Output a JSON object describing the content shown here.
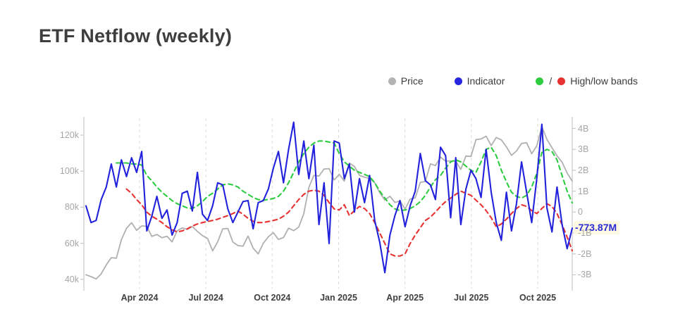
{
  "page": {
    "background": "#ffffff"
  },
  "title": "ETF Netflow (weekly)",
  "legend": {
    "items": [
      {
        "label": "Price",
        "color": "#b3b3b3"
      },
      {
        "label": "Indicator",
        "color": "#2626e0"
      },
      {
        "label": "High/low bands",
        "color": "#2ecc40",
        "color2": "#e63232",
        "separator": "/"
      }
    ]
  },
  "current_value": {
    "label": "-773.87M",
    "value_B": -0.77387,
    "color": "#2a2ad4",
    "highlight": "#fcf7de"
  },
  "chart_data": {
    "type": "line",
    "title": "ETF Netflow (weekly)",
    "x_tick_labels": [
      "Apr 2024",
      "Jul 2024",
      "Oct 2024",
      "Jan 2025",
      "Apr 2025",
      "Jul 2025",
      "Oct 2025"
    ],
    "x_range_note": "weekly points from mid-Jan 2024 to mid-Nov 2025",
    "grid": "vertical-dashed",
    "legend_position": "top-right",
    "left_axis": {
      "ticks": [
        "120k",
        "100k",
        "80k",
        "60k",
        "40k"
      ],
      "values_k": [
        120,
        100,
        80,
        60,
        40
      ],
      "range_k": [
        38,
        128
      ]
    },
    "right_axis": {
      "ticks": [
        "4B",
        "3B",
        "2B",
        "1B",
        "0",
        "-1B",
        "-2B",
        "-3B"
      ],
      "values_B": [
        4,
        3,
        2,
        1,
        0,
        -1,
        -2,
        -3
      ],
      "range_B": [
        -3.5,
        4.5
      ]
    },
    "series": [
      {
        "name": "Price",
        "axis": "left",
        "unit": "USD thousands",
        "color": "#b0b0b0",
        "style": "solid",
        "width": 1.8,
        "values": [
          42.5,
          41.5,
          40.2,
          43.0,
          48.0,
          52.0,
          51.7,
          62.0,
          68.3,
          71.4,
          67.2,
          69.6,
          69.4,
          63.8,
          64.9,
          63.1,
          63.9,
          60.8,
          66.9,
          68.5,
          67.7,
          69.3,
          66.6,
          64.2,
          62.7,
          55.8,
          60.8,
          68.0,
          68.2,
          60.7,
          58.7,
          58.4,
          64.0,
          57.3,
          54.1,
          60.0,
          63.6,
          65.9,
          62.1,
          63.2,
          68.4,
          67.0,
          69.0,
          76.5,
          91.0,
          97.7,
          97.3,
          101.2,
          101.4,
          95.1,
          98.3,
          94.5,
          104.5,
          102.6,
          97.7,
          96.6,
          96.1,
          93.6,
          88.0,
          84.0,
          86.1,
          82.6,
          83.5,
          79.0,
          84.5,
          85.2,
          93.8,
          94.3,
          104.1,
          103.1,
          107.8,
          105.6,
          105.7,
          105.5,
          101.0,
          108.4,
          108.2,
          117.5,
          117.9,
          119.4,
          114.2,
          118.7,
          117.4,
          113.5,
          108.8,
          111.2,
          115.4,
          115.8,
          109.7,
          114.1,
          124.7,
          117.6,
          113.0,
          108.5,
          105.0,
          99.0,
          94.5
        ]
      },
      {
        "name": "Indicator",
        "axis": "right",
        "unit": "USD billions per week",
        "color": "#2222dc",
        "style": "solid",
        "width": 2.1,
        "values": [
          0.3,
          -0.5,
          -0.4,
          0.6,
          1.2,
          2.3,
          1.2,
          2.5,
          1.7,
          2.6,
          1.9,
          2.9,
          -0.9,
          -0.2,
          0.75,
          -0.3,
          0.1,
          -1.1,
          -0.5,
          0.9,
          1.0,
          0.05,
          1.9,
          -0.1,
          -0.4,
          0.3,
          1.4,
          1.3,
          0.15,
          -0.5,
          0.0,
          0.5,
          0.55,
          -0.8,
          0.45,
          0.55,
          1.1,
          2.1,
          2.9,
          1.4,
          3.0,
          4.3,
          1.8,
          3.4,
          1.6,
          3.2,
          -0.6,
          1.4,
          -1.5,
          3.4,
          3.3,
          1.6,
          2.3,
          0.0,
          1.6,
          0.45,
          1.75,
          -0.4,
          -1.45,
          -2.9,
          -1.1,
          -0.17,
          0.55,
          -0.7,
          0.3,
          1.0,
          2.8,
          1.5,
          1.3,
          0.6,
          3.1,
          2.7,
          -0.27,
          2.6,
          -0.6,
          1.1,
          2.0,
          1.6,
          0.7,
          3.0,
          0.95,
          -0.5,
          -1.35,
          0.95,
          -0.9,
          0.4,
          2.4,
          0.95,
          -0.5,
          1.6,
          4.2,
          0.2,
          -0.95,
          1.2,
          -0.6,
          -1.75,
          -0.77
        ]
      },
      {
        "name": "High band",
        "axis": "right",
        "unit": "USD billions per week",
        "color": "#2ecc40",
        "style": "dashed",
        "width": 2.1,
        "values": [
          null,
          null,
          null,
          null,
          null,
          null,
          2.35,
          2.35,
          2.35,
          2.3,
          2.3,
          2.25,
          1.75,
          1.5,
          1.2,
          0.95,
          0.75,
          0.55,
          0.4,
          0.3,
          0.2,
          0.17,
          0.3,
          0.5,
          0.75,
          0.9,
          1.1,
          1.3,
          1.35,
          1.3,
          1.2,
          1.0,
          0.85,
          0.7,
          0.6,
          0.57,
          0.6,
          0.65,
          0.75,
          1.0,
          1.4,
          1.9,
          2.4,
          2.8,
          3.1,
          3.3,
          3.4,
          3.4,
          3.35,
          3.3,
          2.8,
          2.4,
          2.2,
          2.0,
          1.9,
          1.8,
          1.7,
          1.4,
          1.0,
          0.67,
          0.35,
          0.15,
          0.07,
          0.1,
          0.17,
          0.3,
          0.5,
          0.8,
          1.2,
          1.55,
          1.75,
          2.1,
          2.4,
          2.5,
          2.4,
          2.2,
          2.0,
          1.9,
          2.4,
          3.0,
          3.1,
          2.7,
          2.0,
          1.45,
          0.95,
          0.75,
          0.67,
          0.8,
          1.2,
          1.85,
          2.85,
          3.0,
          2.9,
          2.5,
          1.75,
          1.0,
          0.44
        ]
      },
      {
        "name": "Low band",
        "axis": "right",
        "unit": "USD billions per week",
        "color": "#e63232",
        "style": "dashed",
        "width": 2.1,
        "values": [
          null,
          null,
          null,
          null,
          null,
          null,
          null,
          null,
          1.1,
          0.9,
          0.6,
          0.35,
          0.0,
          -0.2,
          -0.34,
          -0.5,
          -0.7,
          -0.85,
          -0.95,
          -0.9,
          -0.8,
          -0.67,
          -0.57,
          -0.5,
          -0.45,
          -0.4,
          -0.34,
          -0.25,
          -0.17,
          -0.07,
          0.05,
          -0.1,
          -0.3,
          -0.44,
          -0.5,
          -0.5,
          -0.45,
          -0.4,
          -0.34,
          -0.2,
          0.0,
          0.3,
          0.6,
          0.85,
          1.0,
          1.05,
          1.0,
          0.8,
          0.45,
          0.15,
          0.1,
          0.35,
          -0.17,
          0.07,
          0.27,
          0.17,
          -0.07,
          -0.5,
          -1.0,
          -1.5,
          -2.0,
          -2.1,
          -2.1,
          -2.0,
          -1.5,
          -1.1,
          -0.75,
          -0.4,
          -0.24,
          0.0,
          0.27,
          0.5,
          0.67,
          0.85,
          1.0,
          0.9,
          0.8,
          0.57,
          0.35,
          0.07,
          -0.27,
          -0.7,
          -0.57,
          -0.34,
          -0.07,
          0.17,
          0.35,
          0.27,
          0.07,
          -0.07,
          0.17,
          0.4,
          0.27,
          -0.07,
          -0.6,
          -1.2,
          -1.85
        ]
      }
    ],
    "annotations": [
      {
        "text": "-773.87M",
        "series": "Indicator",
        "position": "last-value-right-axis"
      }
    ]
  }
}
